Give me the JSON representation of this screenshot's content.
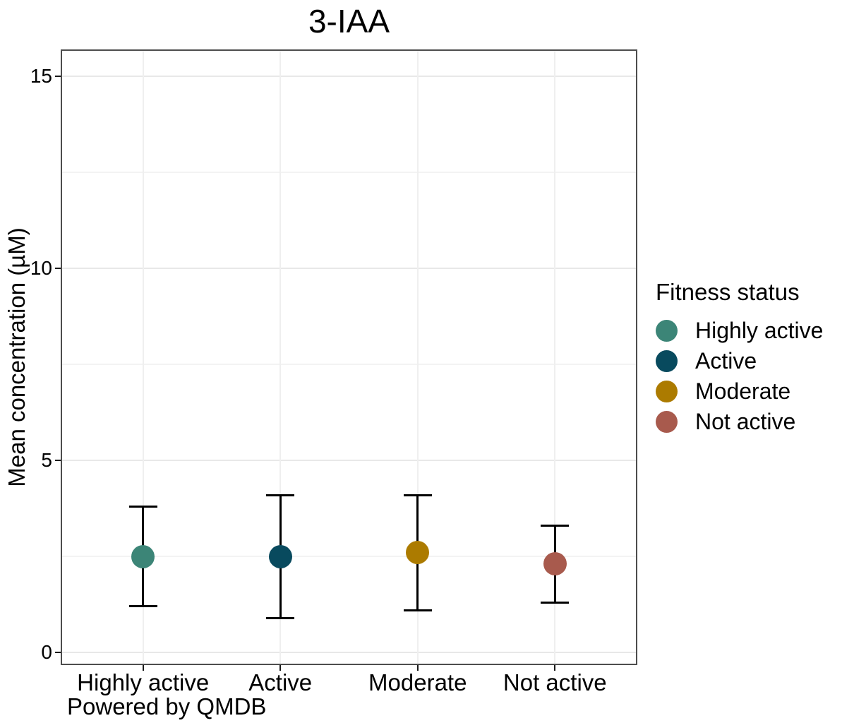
{
  "chart_data": {
    "type": "scatter",
    "subtype": "point-with-error-bars",
    "title": "3-IAA",
    "xlabel": "",
    "ylabel": "Mean concentration (µM)",
    "caption": "Powered by QMDB",
    "categories": [
      "Highly active",
      "Active",
      "Moderate",
      "Not active"
    ],
    "points": [
      {
        "label": "Highly active",
        "mean": 2.5,
        "lower": 1.2,
        "upper": 3.8,
        "color": "#3C8577"
      },
      {
        "label": "Active",
        "mean": 2.5,
        "lower": 0.9,
        "upper": 4.1,
        "color": "#084A5E"
      },
      {
        "label": "Moderate",
        "mean": 2.6,
        "lower": 1.1,
        "upper": 4.1,
        "color": "#AC7B00"
      },
      {
        "label": "Not active",
        "mean": 2.3,
        "lower": 1.3,
        "upper": 3.3,
        "color": "#A85A4D"
      }
    ],
    "y_ticks": [
      0,
      5,
      10,
      15
    ],
    "y_minor_ticks": [
      2.5,
      7.5,
      12.5
    ],
    "ylim": [
      -0.33,
      15.7
    ],
    "grid": {
      "horizontal": "major+minor",
      "vertical": "at-categories"
    },
    "legend": {
      "title": "Fitness status",
      "position": "right",
      "entries": [
        {
          "label": "Highly active",
          "color": "#3C8577"
        },
        {
          "label": "Active",
          "color": "#084A5E"
        },
        {
          "label": "Moderate",
          "color": "#AC7B00"
        },
        {
          "label": "Not active",
          "color": "#A85A4D"
        }
      ]
    },
    "colors": {
      "panel_border": "#4d4d4d",
      "grid_major": "#e8e8e8",
      "grid_minor": "#f3f3f3",
      "error_bar": "#000000",
      "text": "#000000"
    }
  }
}
